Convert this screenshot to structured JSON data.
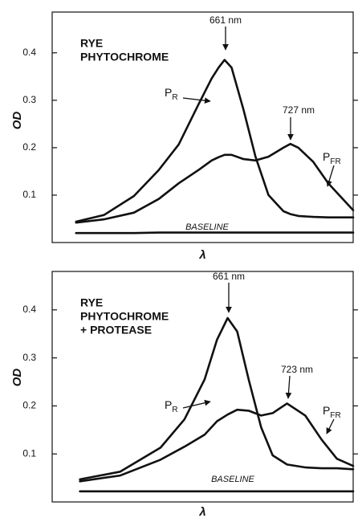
{
  "chart_data": [
    {
      "type": "line",
      "title_lines": [
        "RYE",
        "PHYTOCHROME"
      ],
      "y_label": "OD",
      "x_label": "λ",
      "x": [
        512,
        540,
        570,
        595,
        615,
        635,
        648,
        655,
        661,
        668,
        680,
        692,
        705,
        720,
        727,
        735,
        750,
        765,
        790
      ],
      "xlim": [
        488,
        790
      ],
      "ylim": [
        0,
        0.486
      ],
      "yticks": [
        0.1,
        0.2,
        0.3,
        0.4
      ],
      "series": [
        {
          "name": "P",
          "subscript": "R",
          "color": "#111111",
          "values": [
            0.044,
            0.058,
            0.098,
            0.153,
            0.207,
            0.292,
            0.346,
            0.369,
            0.385,
            0.369,
            0.28,
            0.181,
            0.1,
            0.066,
            0.06,
            0.056,
            0.054,
            0.053,
            0.053
          ]
        },
        {
          "name": "P",
          "subscript": "FR",
          "color": "#111111",
          "values": [
            0.042,
            0.049,
            0.063,
            0.092,
            0.125,
            0.153,
            0.173,
            0.18,
            0.185,
            0.185,
            0.176,
            0.173,
            0.181,
            0.2,
            0.208,
            0.2,
            0.17,
            0.125,
            0.068
          ]
        },
        {
          "name": "BASELINE",
          "color": "#111111",
          "values": [
            0.02,
            0.02,
            0.02,
            0.021,
            0.021,
            0.021,
            0.021,
            0.021,
            0.021,
            0.021,
            0.021,
            0.021,
            0.021,
            0.021,
            0.021,
            0.021,
            0.021,
            0.021,
            0.021
          ]
        }
      ],
      "annotations": [
        "661 nm",
        "727 nm"
      ]
    },
    {
      "type": "line",
      "title_lines": [
        "RYE",
        "PHYTOCHROME",
        "+ PROTEASE"
      ],
      "y_label": "OD",
      "x_label": "λ",
      "x": [
        507,
        549,
        591,
        616,
        637,
        650,
        661,
        671,
        683,
        696,
        708,
        723,
        742,
        759,
        775,
        792
      ],
      "xlim": [
        478,
        792
      ],
      "ylim": [
        0,
        0.48
      ],
      "yticks": [
        0.1,
        0.2,
        0.3,
        0.4
      ],
      "series": [
        {
          "name": "P",
          "subscript": "R",
          "color": "#111111",
          "values": [
            0.047,
            0.063,
            0.113,
            0.172,
            0.255,
            0.338,
            0.383,
            0.355,
            0.255,
            0.155,
            0.097,
            0.078,
            0.072,
            0.07,
            0.07,
            0.068
          ]
        },
        {
          "name": "P",
          "subscript": "FR",
          "color": "#111111",
          "values": [
            0.043,
            0.055,
            0.088,
            0.115,
            0.14,
            0.168,
            0.182,
            0.192,
            0.19,
            0.18,
            0.185,
            0.205,
            0.18,
            0.13,
            0.09,
            0.075
          ]
        },
        {
          "name": "BASELINE",
          "color": "#111111",
          "values": [
            0.022,
            0.022,
            0.022,
            0.022,
            0.022,
            0.022,
            0.022,
            0.022,
            0.022,
            0.022,
            0.022,
            0.022,
            0.022,
            0.022,
            0.022,
            0.022
          ]
        }
      ],
      "annotations": [
        "661 nm",
        "723 nm"
      ]
    }
  ]
}
